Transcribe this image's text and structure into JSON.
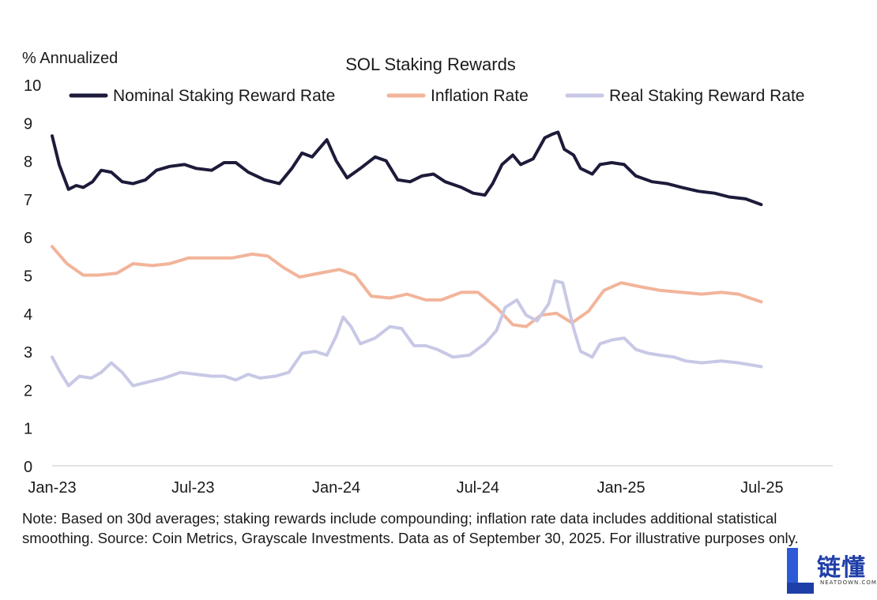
{
  "chart_data": {
    "type": "line",
    "title": "SOL Staking Rewards",
    "ylabel": "% Annualized",
    "xlabel": "",
    "ylim": [
      0,
      10
    ],
    "yticks": [
      0,
      1,
      2,
      3,
      4,
      5,
      6,
      7,
      8,
      9,
      10
    ],
    "xticks": [
      "Jan-23",
      "Jul-23",
      "Jan-24",
      "Jul-24",
      "Jan-25",
      "Jul-25"
    ],
    "xrange": [
      "2023-01-01",
      "2025-09-30"
    ],
    "grid": false,
    "legend_position": "top",
    "series": [
      {
        "name": "Nominal Staking Reward Rate",
        "color": "#1d1b3a",
        "points": [
          [
            "2023-01-01",
            8.65
          ],
          [
            "2023-01-10",
            7.9
          ],
          [
            "2023-01-22",
            7.25
          ],
          [
            "2023-02-01",
            7.35
          ],
          [
            "2023-02-10",
            7.3
          ],
          [
            "2023-02-22",
            7.45
          ],
          [
            "2023-03-05",
            7.75
          ],
          [
            "2023-03-18",
            7.7
          ],
          [
            "2023-04-01",
            7.45
          ],
          [
            "2023-04-15",
            7.4
          ],
          [
            "2023-05-01",
            7.5
          ],
          [
            "2023-05-15",
            7.75
          ],
          [
            "2023-06-01",
            7.85
          ],
          [
            "2023-06-20",
            7.9
          ],
          [
            "2023-07-05",
            7.8
          ],
          [
            "2023-07-25",
            7.75
          ],
          [
            "2023-08-10",
            7.95
          ],
          [
            "2023-08-25",
            7.95
          ],
          [
            "2023-09-10",
            7.7
          ],
          [
            "2023-10-01",
            7.5
          ],
          [
            "2023-10-20",
            7.4
          ],
          [
            "2023-11-05",
            7.8
          ],
          [
            "2023-11-18",
            8.2
          ],
          [
            "2023-12-01",
            8.1
          ],
          [
            "2023-12-20",
            8.55
          ],
          [
            "2024-01-01",
            8.0
          ],
          [
            "2024-01-15",
            7.55
          ],
          [
            "2024-02-01",
            7.8
          ],
          [
            "2024-02-20",
            8.1
          ],
          [
            "2024-03-05",
            8.0
          ],
          [
            "2024-03-20",
            7.5
          ],
          [
            "2024-04-05",
            7.45
          ],
          [
            "2024-04-20",
            7.6
          ],
          [
            "2024-05-05",
            7.65
          ],
          [
            "2024-05-20",
            7.45
          ],
          [
            "2024-06-10",
            7.3
          ],
          [
            "2024-06-25",
            7.15
          ],
          [
            "2024-07-10",
            7.1
          ],
          [
            "2024-07-20",
            7.4
          ],
          [
            "2024-08-01",
            7.9
          ],
          [
            "2024-08-15",
            8.15
          ],
          [
            "2024-08-25",
            7.9
          ],
          [
            "2024-09-10",
            8.05
          ],
          [
            "2024-09-25",
            8.6
          ],
          [
            "2024-10-05",
            8.7
          ],
          [
            "2024-10-12",
            8.75
          ],
          [
            "2024-10-20",
            8.3
          ],
          [
            "2024-11-01",
            8.15
          ],
          [
            "2024-11-10",
            7.8
          ],
          [
            "2024-11-25",
            7.65
          ],
          [
            "2024-12-05",
            7.9
          ],
          [
            "2024-12-20",
            7.95
          ],
          [
            "2025-01-05",
            7.9
          ],
          [
            "2025-01-20",
            7.6
          ],
          [
            "2025-02-10",
            7.45
          ],
          [
            "2025-03-01",
            7.4
          ],
          [
            "2025-03-20",
            7.3
          ],
          [
            "2025-04-10",
            7.2
          ],
          [
            "2025-05-01",
            7.15
          ],
          [
            "2025-05-20",
            7.05
          ],
          [
            "2025-06-10",
            7.0
          ],
          [
            "2025-06-30",
            6.85
          ]
        ]
      },
      {
        "name": "Inflation Rate",
        "color": "#f2b49a",
        "points": [
          [
            "2023-01-01",
            5.75
          ],
          [
            "2023-01-20",
            5.3
          ],
          [
            "2023-02-10",
            5.0
          ],
          [
            "2023-03-01",
            5.0
          ],
          [
            "2023-03-25",
            5.05
          ],
          [
            "2023-04-15",
            5.3
          ],
          [
            "2023-05-10",
            5.25
          ],
          [
            "2023-06-01",
            5.3
          ],
          [
            "2023-06-25",
            5.45
          ],
          [
            "2023-07-20",
            5.45
          ],
          [
            "2023-08-20",
            5.45
          ],
          [
            "2023-09-15",
            5.55
          ],
          [
            "2023-10-05",
            5.5
          ],
          [
            "2023-10-25",
            5.2
          ],
          [
            "2023-11-15",
            4.95
          ],
          [
            "2023-12-10",
            5.05
          ],
          [
            "2024-01-05",
            5.15
          ],
          [
            "2024-01-25",
            5.0
          ],
          [
            "2024-02-15",
            4.45
          ],
          [
            "2024-03-10",
            4.4
          ],
          [
            "2024-04-01",
            4.5
          ],
          [
            "2024-04-25",
            4.35
          ],
          [
            "2024-05-15",
            4.35
          ],
          [
            "2024-06-10",
            4.55
          ],
          [
            "2024-07-01",
            4.55
          ],
          [
            "2024-07-25",
            4.15
          ],
          [
            "2024-08-15",
            3.7
          ],
          [
            "2024-09-01",
            3.65
          ],
          [
            "2024-09-20",
            3.95
          ],
          [
            "2024-10-10",
            4.0
          ],
          [
            "2024-10-30",
            3.75
          ],
          [
            "2024-11-20",
            4.05
          ],
          [
            "2024-12-10",
            4.6
          ],
          [
            "2025-01-01",
            4.8
          ],
          [
            "2025-01-25",
            4.7
          ],
          [
            "2025-02-20",
            4.6
          ],
          [
            "2025-03-20",
            4.55
          ],
          [
            "2025-04-15",
            4.5
          ],
          [
            "2025-05-10",
            4.55
          ],
          [
            "2025-06-01",
            4.5
          ],
          [
            "2025-06-30",
            4.3
          ]
        ]
      },
      {
        "name": "Real Staking Reward Rate",
        "color": "#c8c8e6",
        "points": [
          [
            "2023-01-01",
            2.85
          ],
          [
            "2023-01-10",
            2.5
          ],
          [
            "2023-01-22",
            2.1
          ],
          [
            "2023-02-05",
            2.35
          ],
          [
            "2023-02-20",
            2.3
          ],
          [
            "2023-03-05",
            2.45
          ],
          [
            "2023-03-18",
            2.7
          ],
          [
            "2023-04-01",
            2.45
          ],
          [
            "2023-04-15",
            2.1
          ],
          [
            "2023-05-05",
            2.2
          ],
          [
            "2023-05-25",
            2.3
          ],
          [
            "2023-06-15",
            2.45
          ],
          [
            "2023-07-05",
            2.4
          ],
          [
            "2023-07-25",
            2.35
          ],
          [
            "2023-08-10",
            2.35
          ],
          [
            "2023-08-25",
            2.25
          ],
          [
            "2023-09-10",
            2.4
          ],
          [
            "2023-09-25",
            2.3
          ],
          [
            "2023-10-15",
            2.35
          ],
          [
            "2023-11-01",
            2.45
          ],
          [
            "2023-11-18",
            2.95
          ],
          [
            "2023-12-05",
            3.0
          ],
          [
            "2023-12-20",
            2.9
          ],
          [
            "2024-01-01",
            3.4
          ],
          [
            "2024-01-10",
            3.9
          ],
          [
            "2024-01-20",
            3.65
          ],
          [
            "2024-02-01",
            3.2
          ],
          [
            "2024-02-20",
            3.35
          ],
          [
            "2024-03-10",
            3.65
          ],
          [
            "2024-03-25",
            3.6
          ],
          [
            "2024-04-10",
            3.15
          ],
          [
            "2024-04-25",
            3.15
          ],
          [
            "2024-05-10",
            3.05
          ],
          [
            "2024-05-30",
            2.85
          ],
          [
            "2024-06-20",
            2.9
          ],
          [
            "2024-07-10",
            3.2
          ],
          [
            "2024-07-25",
            3.55
          ],
          [
            "2024-08-05",
            4.15
          ],
          [
            "2024-08-20",
            4.35
          ],
          [
            "2024-09-01",
            3.95
          ],
          [
            "2024-09-15",
            3.8
          ],
          [
            "2024-09-30",
            4.25
          ],
          [
            "2024-10-08",
            4.85
          ],
          [
            "2024-10-18",
            4.8
          ],
          [
            "2024-11-01",
            3.6
          ],
          [
            "2024-11-10",
            3.0
          ],
          [
            "2024-11-25",
            2.85
          ],
          [
            "2024-12-05",
            3.2
          ],
          [
            "2024-12-20",
            3.3
          ],
          [
            "2025-01-05",
            3.35
          ],
          [
            "2025-01-20",
            3.05
          ],
          [
            "2025-02-05",
            2.95
          ],
          [
            "2025-02-20",
            2.9
          ],
          [
            "2025-03-10",
            2.85
          ],
          [
            "2025-03-25",
            2.75
          ],
          [
            "2025-04-15",
            2.7
          ],
          [
            "2025-05-10",
            2.75
          ],
          [
            "2025-06-01",
            2.7
          ],
          [
            "2025-06-30",
            2.6
          ]
        ]
      }
    ]
  },
  "note": "Note: Based on 30d averages; staking rewards include compounding; inflation rate data includes additional statistical smoothing. Source: Coin Metrics, Grayscale Investments. Data as of September 30, 2025. For illustrative purposes only.",
  "watermark": {
    "brand": "链懂",
    "site": "NEATDOWN.COM"
  }
}
